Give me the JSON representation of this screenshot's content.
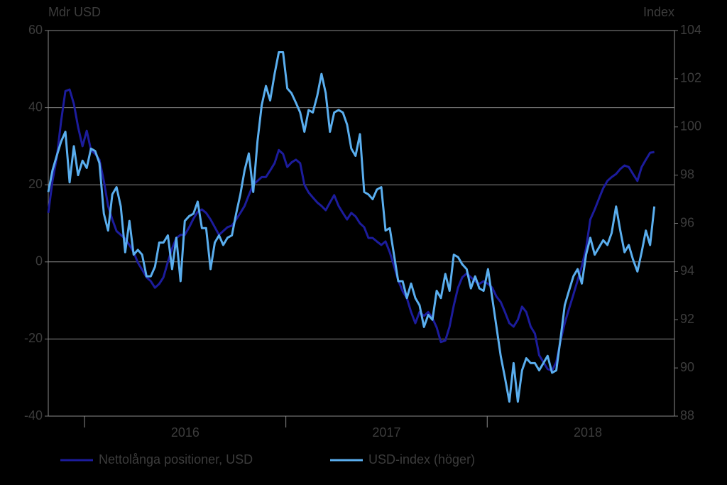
{
  "chart_data": {
    "type": "line",
    "y_label": "Mdr USD",
    "y2_label": "Index",
    "xlim": [
      2015.82,
      2018.93
    ],
    "xticks": [
      2016,
      2017,
      2018
    ],
    "ylim": [
      -40,
      60
    ],
    "yticks": [
      -40,
      -20,
      0,
      20,
      40,
      60
    ],
    "y2lim": [
      88,
      104
    ],
    "y2ticks": [
      88,
      90,
      92,
      94,
      96,
      98,
      100,
      102,
      104
    ],
    "grid": true,
    "x": [
      2015.82,
      2015.841,
      2015.862,
      2015.884,
      2015.905,
      2015.926,
      2015.947,
      2015.968,
      2015.99,
      2016.011,
      2016.032,
      2016.053,
      2016.074,
      2016.096,
      2016.117,
      2016.138,
      2016.159,
      2016.18,
      2016.202,
      2016.223,
      2016.244,
      2016.265,
      2016.286,
      2016.308,
      2016.329,
      2016.35,
      2016.371,
      2016.392,
      2016.414,
      2016.435,
      2016.456,
      2016.477,
      2016.498,
      2016.52,
      2016.541,
      2016.562,
      2016.583,
      2016.604,
      2016.626,
      2016.647,
      2016.668,
      2016.689,
      2016.71,
      2016.732,
      2016.753,
      2016.774,
      2016.795,
      2016.816,
      2016.838,
      2016.859,
      2016.88,
      2016.901,
      2016.922,
      2016.944,
      2016.965,
      2016.986,
      2017.007,
      2017.028,
      2017.05,
      2017.071,
      2017.092,
      2017.113,
      2017.134,
      2017.156,
      2017.177,
      2017.198,
      2017.219,
      2017.24,
      2017.262,
      2017.283,
      2017.304,
      2017.325,
      2017.346,
      2017.368,
      2017.389,
      2017.41,
      2017.431,
      2017.452,
      2017.474,
      2017.495,
      2017.516,
      2017.537,
      2017.558,
      2017.58,
      2017.601,
      2017.622,
      2017.643,
      2017.664,
      2017.686,
      2017.707,
      2017.728,
      2017.749,
      2017.77,
      2017.792,
      2017.813,
      2017.834,
      2017.855,
      2017.876,
      2017.898,
      2017.919,
      2017.94,
      2017.961,
      2017.982,
      2018.004,
      2018.025,
      2018.046,
      2018.067,
      2018.088,
      2018.11,
      2018.131,
      2018.152,
      2018.173,
      2018.194,
      2018.216,
      2018.237,
      2018.258,
      2018.279,
      2018.3,
      2018.322,
      2018.343,
      2018.364,
      2018.385,
      2018.406,
      2018.428,
      2018.449,
      2018.47,
      2018.491,
      2018.512,
      2018.534,
      2018.555,
      2018.576,
      2018.597,
      2018.618,
      2018.64,
      2018.661,
      2018.682,
      2018.703,
      2018.724,
      2018.746,
      2018.767,
      2018.788,
      2018.809,
      2018.83
    ],
    "series": [
      {
        "name": "Nettolånga positioner, USD",
        "color": "#1c1c9c",
        "axis": "y",
        "values": [
          12.7,
          21,
          27,
          36.6,
          44.3,
          44.7,
          41,
          35,
          30,
          34,
          29,
          28,
          26.5,
          21,
          14.5,
          11,
          8,
          7,
          6,
          4.4,
          2.5,
          -0.2,
          -2,
          -4,
          -5,
          -6.7,
          -5.7,
          -4,
          0,
          3.5,
          6.2,
          7,
          7,
          9,
          11.2,
          13,
          13.6,
          12.7,
          11,
          9,
          7,
          8,
          9,
          9.4,
          11,
          12.7,
          14.5,
          17.3,
          20,
          21,
          22,
          22,
          23.7,
          25.6,
          29,
          28,
          24.6,
          25.8,
          26.5,
          25.6,
          20,
          18,
          16.7,
          15.4,
          14.5,
          13.4,
          15.4,
          17.3,
          14.5,
          12.7,
          11,
          12.7,
          11.8,
          10,
          9,
          6.2,
          6.2,
          5.3,
          4.4,
          5.3,
          2.5,
          -1,
          -4.8,
          -7.6,
          -9.4,
          -13,
          -15.9,
          -13,
          -14,
          -13,
          -14.6,
          -17,
          -20.8,
          -20.4,
          -16.8,
          -11.3,
          -6.7,
          -4,
          -3,
          -4,
          -5,
          -5.7,
          -5,
          -5.7,
          -6.7,
          -9,
          -10.4,
          -13,
          -15.9,
          -16.8,
          -15,
          -11.6,
          -13,
          -16.8,
          -18.6,
          -24.2,
          -26,
          -27.8,
          -28.2,
          -26,
          -20.5,
          -15.9,
          -12.2,
          -8.5,
          -4.8,
          -1.1,
          3.5,
          11,
          13.6,
          16.4,
          19.1,
          21,
          22,
          22.8,
          24.1,
          25,
          24.6,
          22.8,
          21,
          24.6,
          26.5,
          28.3,
          28.5
        ]
      },
      {
        "name": "USD-index (höger)",
        "color": "#5aaeee",
        "axis": "y2",
        "values": [
          97.3,
          98.2,
          98.8,
          99.4,
          99.8,
          97.7,
          99.2,
          98.0,
          98.6,
          98.3,
          99.1,
          99.0,
          98.5,
          96.4,
          95.7,
          97.2,
          97.5,
          96.7,
          94.8,
          96.1,
          94.7,
          94.9,
          94.7,
          93.8,
          93.8,
          94.2,
          95.2,
          95.2,
          95.5,
          94.1,
          95.4,
          93.6,
          96.1,
          96.3,
          96.4,
          96.9,
          95.8,
          95.8,
          94.1,
          95.2,
          95.5,
          95.1,
          95.4,
          95.5,
          96.4,
          97.2,
          98.2,
          98.9,
          97.3,
          99.4,
          100.9,
          101.7,
          101.1,
          102.2,
          103.1,
          103.1,
          101.6,
          101.4,
          101.0,
          100.6,
          99.8,
          100.7,
          100.6,
          101.3,
          102.2,
          101.4,
          99.8,
          100.6,
          100.7,
          100.6,
          100.1,
          99.1,
          98.8,
          99.7,
          97.3,
          97.2,
          97.0,
          97.4,
          97.5,
          95.7,
          95.8,
          94.7,
          93.6,
          93.6,
          92.9,
          93.5,
          92.9,
          92.6,
          91.7,
          92.2,
          92.0,
          93.2,
          92.9,
          93.9,
          93.2,
          94.7,
          94.6,
          94.3,
          94.1,
          93.3,
          93.8,
          93.3,
          93.2,
          94.1,
          92.9,
          91.7,
          90.5,
          89.6,
          88.6,
          90.2,
          88.6,
          89.9,
          90.4,
          90.2,
          90.2,
          89.9,
          90.2,
          90.5,
          89.8,
          89.9,
          91.2,
          92.6,
          93.2,
          93.8,
          94.1,
          93.5,
          94.7,
          95.4,
          94.7,
          95.0,
          95.3,
          95.1,
          95.6,
          96.7,
          95.7,
          94.8,
          95.1,
          94.5,
          94.0,
          94.8,
          95.7,
          95.1,
          96.7
        ]
      }
    ]
  }
}
